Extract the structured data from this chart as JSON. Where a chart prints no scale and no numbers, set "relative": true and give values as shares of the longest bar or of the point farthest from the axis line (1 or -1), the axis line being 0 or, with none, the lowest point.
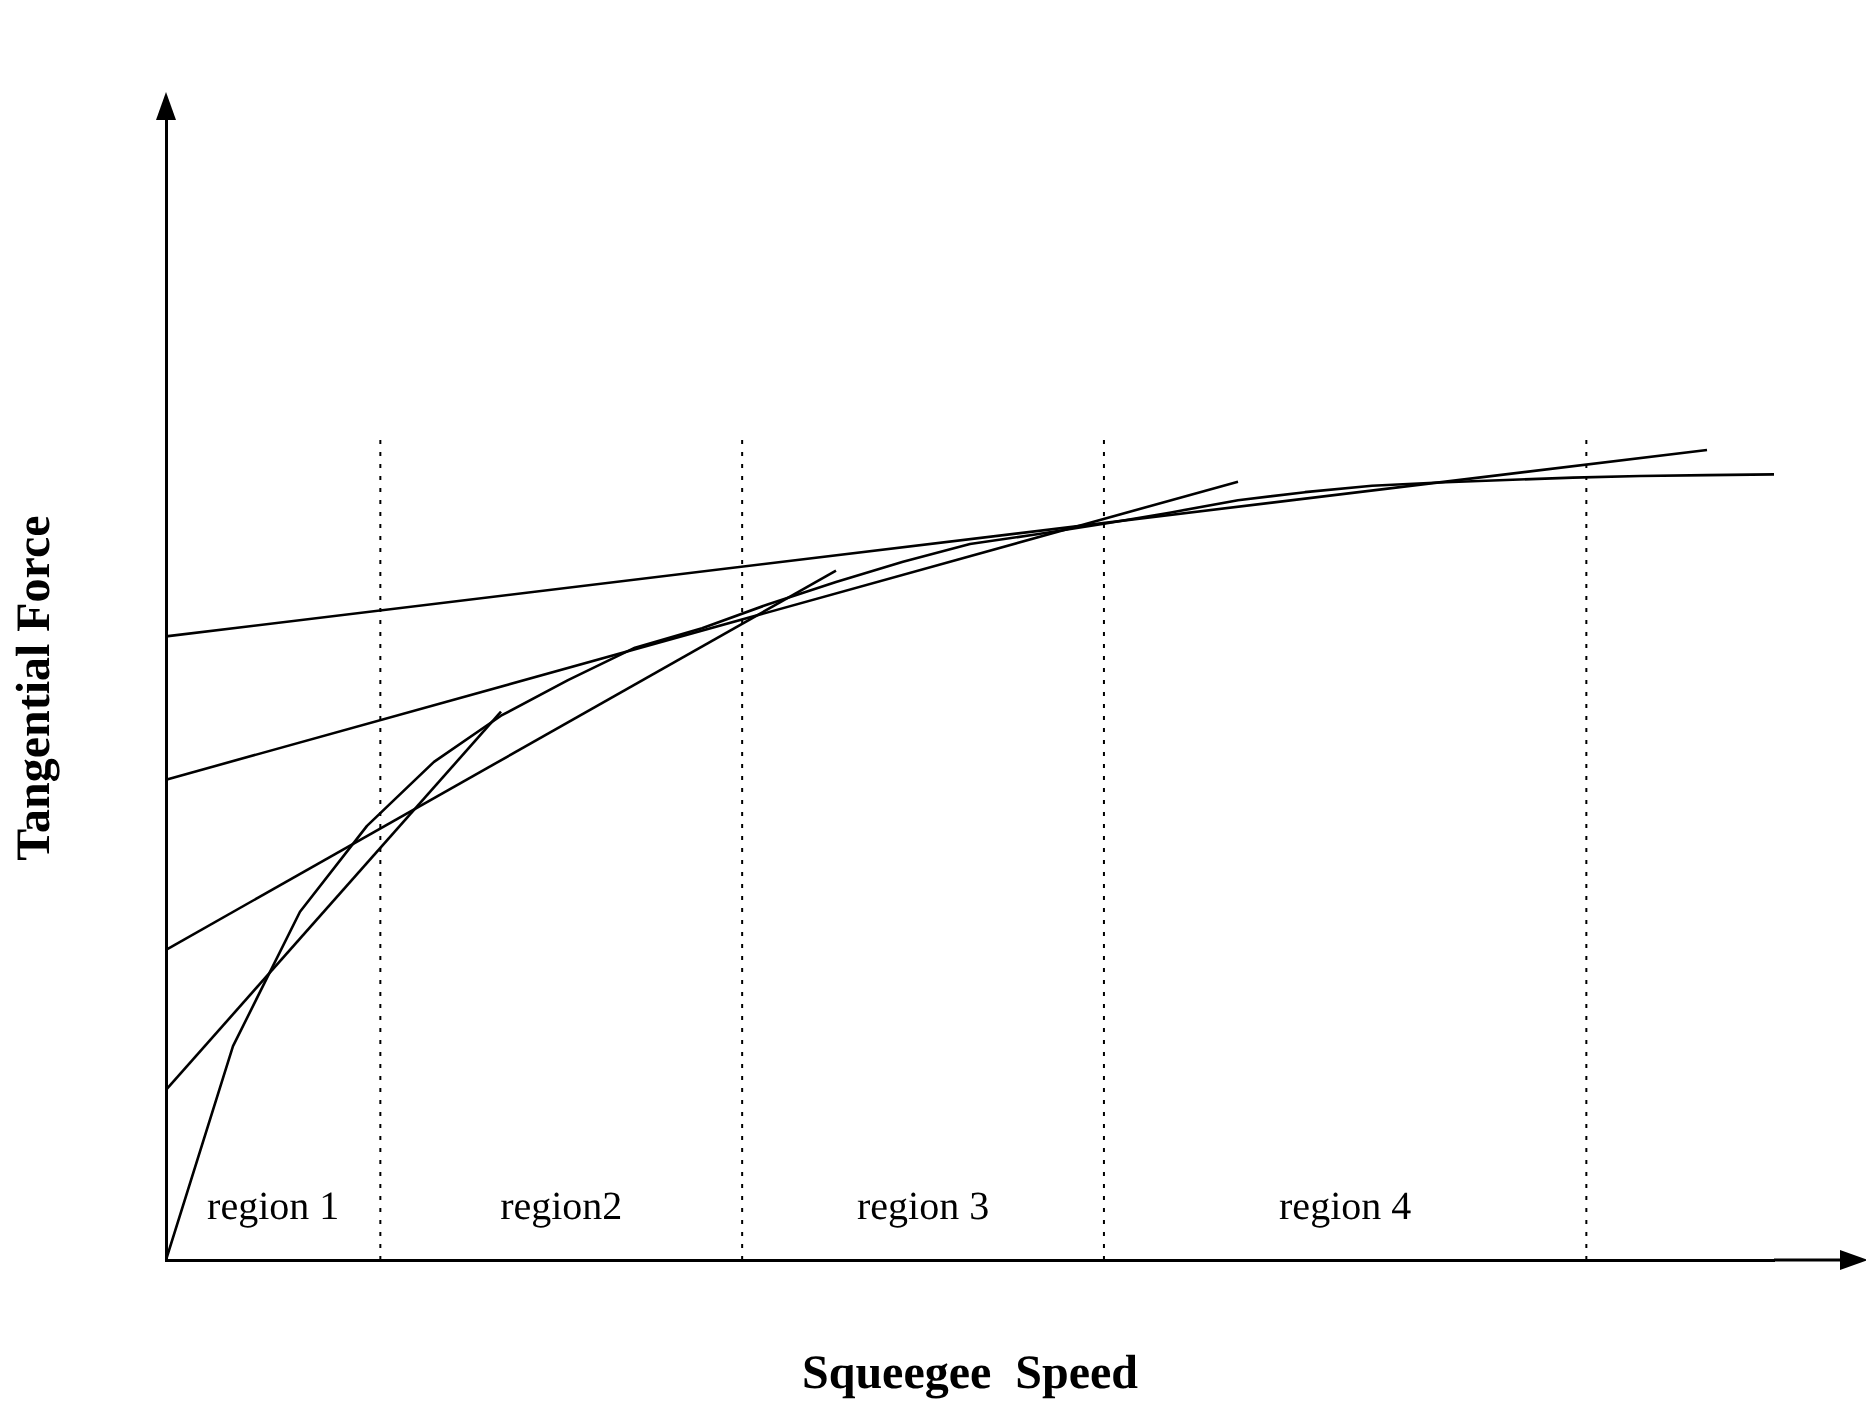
{
  "chart_data": {
    "type": "line",
    "relative": true,
    "xlabel": "Squeegee  Speed",
    "ylabel": "Tangential Force",
    "legend": false,
    "marker": "none",
    "line_style": "solid",
    "categories": [
      null,
      null,
      null,
      null,
      null,
      null,
      null,
      null,
      null,
      null,
      null,
      null,
      null,
      null,
      null,
      null,
      null,
      null,
      null,
      null,
      null,
      null,
      null,
      null,
      null
    ],
    "series": [
      {
        "color": "#000000",
        "values": [
          0,
          0.264,
          0.43,
          0.536,
          0.615,
          0.672,
          0.716,
          0.756,
          0.78,
          0.81,
          0.837,
          0.862,
          0.884,
          0.896,
          0.909,
          0.923,
          0.938,
          0.948,
          0.956,
          0.96,
          0.963,
          0.966,
          0.968,
          0.969,
          0.97
        ]
      },
      {
        "color": "#000000",
        "values": [
          0.21,
          null,
          null,
          null,
          null,
          0.677,
          null,
          null,
          null,
          null,
          null,
          null,
          null,
          null,
          null,
          null,
          null,
          null,
          null,
          null,
          null,
          null,
          null,
          null,
          null
        ]
      },
      {
        "color": "#000000",
        "values": [
          0.383,
          null,
          null,
          null,
          null,
          null,
          null,
          null,
          null,
          null,
          0.851,
          null,
          null,
          null,
          null,
          null,
          null,
          null,
          null,
          null,
          null,
          null,
          null,
          null,
          null
        ]
      },
      {
        "color": "#000000",
        "values": [
          0.593,
          null,
          null,
          null,
          null,
          null,
          null,
          null,
          null,
          null,
          null,
          null,
          null,
          null,
          null,
          null,
          0.961,
          null,
          null,
          null,
          null,
          null,
          null,
          null,
          null
        ]
      },
      {
        "color": "#000000",
        "values": [
          0.77,
          null,
          null,
          null,
          null,
          null,
          null,
          null,
          null,
          null,
          null,
          null,
          null,
          null,
          null,
          null,
          null,
          null,
          null,
          null,
          null,
          null,
          null,
          1,
          null
        ]
      }
    ],
    "annotations": [
      "region 1",
      "region2",
      "region 3",
      "region 4"
    ]
  }
}
